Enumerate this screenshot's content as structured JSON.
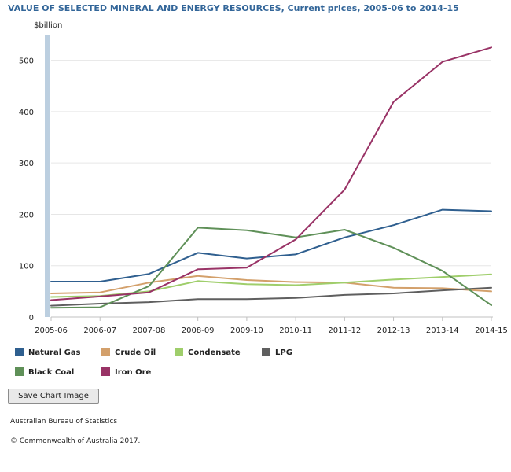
{
  "chart_data": {
    "type": "line",
    "title": "VALUE OF SELECTED MINERAL AND ENERGY RESOURCES, Current prices, 2005-06 to 2014-15",
    "ylabel": "$billion",
    "xlabel": "",
    "categories": [
      "2005-06",
      "2006-07",
      "2007-08",
      "2008-09",
      "2009-10",
      "2010-11",
      "2011-12",
      "2012-13",
      "2013-14",
      "2014-15"
    ],
    "ylim": [
      0,
      550
    ],
    "yticks": [
      0,
      100,
      200,
      300,
      400,
      500
    ],
    "grid": true,
    "legend_position": "bottom-left",
    "series": [
      {
        "name": "Natural Gas",
        "color": "#2f5f8f",
        "values": [
          69,
          69,
          84,
          125,
          114,
          122,
          155,
          179,
          209,
          206
        ]
      },
      {
        "name": "Crude Oil",
        "color": "#d3a06b",
        "values": [
          46,
          48,
          67,
          80,
          72,
          68,
          67,
          57,
          56,
          50
        ]
      },
      {
        "name": "Condensate",
        "color": "#9fce6b",
        "values": [
          39,
          41,
          50,
          70,
          64,
          62,
          67,
          73,
          78,
          83
        ]
      },
      {
        "name": "LPG",
        "color": "#5f5f5f",
        "values": [
          22,
          26,
          29,
          35,
          35,
          37,
          43,
          46,
          52,
          57
        ]
      },
      {
        "name": "Black Coal",
        "color": "#5f9058",
        "values": [
          18,
          19,
          60,
          174,
          169,
          155,
          170,
          135,
          90,
          23
        ]
      },
      {
        "name": "Iron Ore",
        "color": "#993366",
        "values": [
          33,
          40,
          48,
          93,
          96,
          151,
          248,
          419,
          497,
          525
        ]
      }
    ]
  },
  "ui": {
    "save_button_label": "Save Chart Image",
    "source": "Australian Bureau of Statistics",
    "copyright": "© Commonwealth of Australia 2017."
  }
}
